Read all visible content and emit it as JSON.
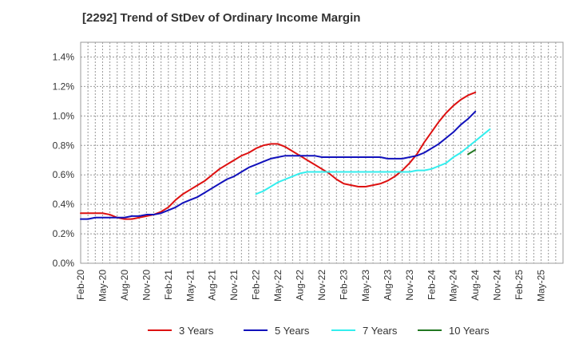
{
  "chart_data": {
    "type": "line",
    "title": "[2292]  Trend of StDev of Ordinary Income Margin",
    "xlabel": "",
    "ylabel": "",
    "x_tick_labels": [
      "Feb-20",
      "May-20",
      "Aug-20",
      "Nov-20",
      "Feb-21",
      "May-21",
      "Aug-21",
      "Nov-21",
      "Feb-22",
      "May-22",
      "Aug-22",
      "Nov-22",
      "Feb-23",
      "May-23",
      "Aug-23",
      "Nov-23",
      "Feb-24",
      "May-24",
      "Aug-24",
      "Nov-24",
      "Feb-25",
      "May-25"
    ],
    "y_tick_labels": [
      "0.0%",
      "0.2%",
      "0.4%",
      "0.6%",
      "0.8%",
      "1.0%",
      "1.2%",
      "1.4%"
    ],
    "ylim": [
      0,
      1.5
    ],
    "grid": true,
    "legend_position": "bottom",
    "series": [
      {
        "name": "3 Years",
        "color": "#dd1111",
        "start_index": 0,
        "values": [
          0.34,
          0.34,
          0.34,
          0.34,
          0.33,
          0.31,
          0.3,
          0.3,
          0.31,
          0.32,
          0.33,
          0.35,
          0.38,
          0.43,
          0.47,
          0.5,
          0.53,
          0.56,
          0.6,
          0.64,
          0.67,
          0.7,
          0.73,
          0.75,
          0.78,
          0.8,
          0.81,
          0.81,
          0.79,
          0.76,
          0.73,
          0.7,
          0.67,
          0.64,
          0.61,
          0.57,
          0.54,
          0.53,
          0.52,
          0.52,
          0.53,
          0.54,
          0.56,
          0.59,
          0.63,
          0.68,
          0.74,
          0.82,
          0.89,
          0.96,
          1.02,
          1.07,
          1.11,
          1.14,
          1.16
        ]
      },
      {
        "name": "5 Years",
        "color": "#1111bb",
        "start_index": 0,
        "values": [
          0.3,
          0.3,
          0.31,
          0.31,
          0.31,
          0.31,
          0.31,
          0.32,
          0.32,
          0.33,
          0.33,
          0.34,
          0.36,
          0.38,
          0.41,
          0.43,
          0.45,
          0.48,
          0.51,
          0.54,
          0.57,
          0.59,
          0.62,
          0.65,
          0.67,
          0.69,
          0.71,
          0.72,
          0.73,
          0.73,
          0.73,
          0.73,
          0.73,
          0.72,
          0.72,
          0.72,
          0.72,
          0.72,
          0.72,
          0.72,
          0.72,
          0.72,
          0.71,
          0.71,
          0.71,
          0.72,
          0.73,
          0.75,
          0.78,
          0.81,
          0.85,
          0.89,
          0.94,
          0.98,
          1.03
        ]
      },
      {
        "name": "7 Years",
        "color": "#33eeee",
        "start_index": 24,
        "values": [
          0.47,
          0.49,
          0.52,
          0.55,
          0.57,
          0.59,
          0.61,
          0.62,
          0.62,
          0.62,
          0.62,
          0.62,
          0.62,
          0.62,
          0.62,
          0.62,
          0.62,
          0.62,
          0.62,
          0.62,
          0.62,
          0.62,
          0.63,
          0.63,
          0.64,
          0.66,
          0.68,
          0.72,
          0.75,
          0.79,
          0.83,
          0.87,
          0.91
        ]
      },
      {
        "name": "10 Years",
        "color": "#227722",
        "start_index": 53,
        "values": [
          0.74,
          0.77
        ]
      }
    ]
  }
}
